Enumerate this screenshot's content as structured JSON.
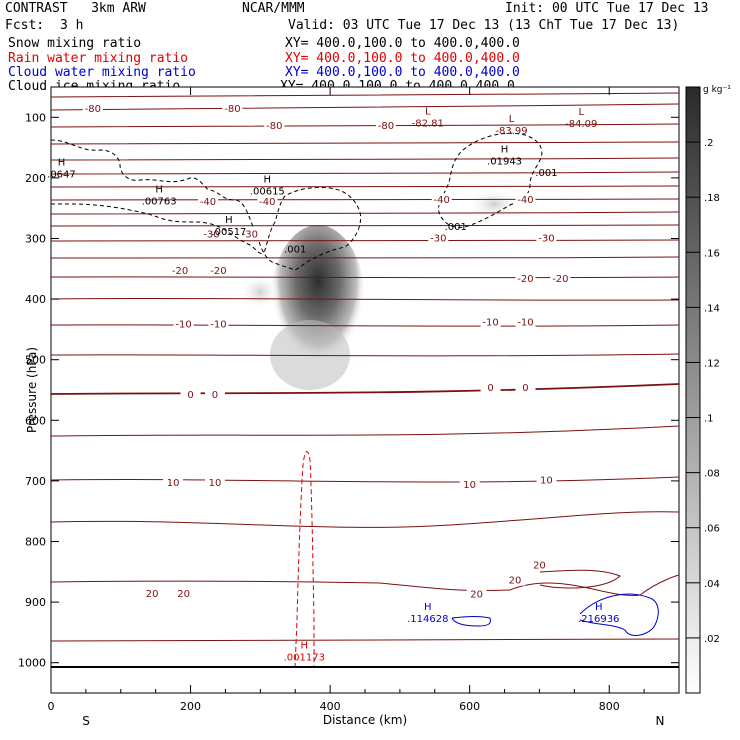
{
  "header": {
    "model": "CONTRAST   3km ARW",
    "org": "NCAR/MMM",
    "init": "Init: 00 UTC Tue 17 Dec 13",
    "fcst_label": "Fcst:",
    "fcst_value": "3 h",
    "valid": "Valid: 03 UTC Tue 17 Dec 13 (13 ChT Tue 17 Dec 13)",
    "fields": [
      {
        "name": "Snow mixing ratio",
        "xy": "XY= 400.0,100.0 to 400.0,400.0",
        "color": "#000000"
      },
      {
        "name": "Rain water mixing ratio",
        "xy": "XY= 400.0,100.0 to 400.0,400.0",
        "color": "#e00000"
      },
      {
        "name": "Cloud water mixing ratio",
        "xy": "XY= 400.0,100.0 to 400.0,400.0",
        "color": "#0000cc"
      },
      {
        "name": "Cloud ice mixing ratio",
        "xy": "XY= 400.0,100.0 to 400.0,400.0",
        "color": "#000000"
      }
    ]
  },
  "chart_data": {
    "type": "contour",
    "xlabel": "Distance (km)",
    "ylabel": "Pressure (hPa)",
    "xlim": [
      0,
      900
    ],
    "ylim": [
      1050,
      50
    ],
    "x_ticks": [
      0,
      200,
      400,
      600,
      800
    ],
    "y_ticks": [
      100,
      200,
      300,
      400,
      500,
      600,
      700,
      800,
      900,
      1000
    ],
    "end_labels": {
      "left": "S",
      "right": "N"
    },
    "colorbar": {
      "unit": "g kg⁻¹",
      "ticks": [
        ".02",
        ".04",
        ".06",
        ".08",
        ".1",
        ".12",
        ".14",
        ".16",
        ".18",
        ".2"
      ],
      "min": 0,
      "max": 0.22
    },
    "temperature_labels": [
      {
        "text": "-80",
        "x": 60,
        "p": 85
      },
      {
        "text": "-80",
        "x": 260,
        "p": 85
      },
      {
        "text": "-80",
        "x": 320,
        "p": 113
      },
      {
        "text": "-80",
        "x": 480,
        "p": 113
      },
      {
        "text": "-40",
        "x": 225,
        "p": 238
      },
      {
        "text": "-40",
        "x": 310,
        "p": 238
      },
      {
        "text": "-40",
        "x": 560,
        "p": 235
      },
      {
        "text": "-40",
        "x": 680,
        "p": 235
      },
      {
        "text": "-30",
        "x": 230,
        "p": 292
      },
      {
        "text": "-30",
        "x": 285,
        "p": 292
      },
      {
        "text": "-30",
        "x": 555,
        "p": 298
      },
      {
        "text": "-30",
        "x": 710,
        "p": 298
      },
      {
        "text": "-20",
        "x": 185,
        "p": 352
      },
      {
        "text": "-20",
        "x": 240,
        "p": 352
      },
      {
        "text": "-20",
        "x": 680,
        "p": 365
      },
      {
        "text": "-20",
        "x": 730,
        "p": 365
      },
      {
        "text": "-10",
        "x": 190,
        "p": 440
      },
      {
        "text": "-10",
        "x": 240,
        "p": 440
      },
      {
        "text": "-10",
        "x": 630,
        "p": 437
      },
      {
        "text": "-10",
        "x": 680,
        "p": 437
      },
      {
        "text": "0",
        "x": 200,
        "p": 557
      },
      {
        "text": "0",
        "x": 235,
        "p": 557
      },
      {
        "text": "0",
        "x": 630,
        "p": 545
      },
      {
        "text": "0",
        "x": 680,
        "p": 545
      },
      {
        "text": "10",
        "x": 175,
        "p": 702
      },
      {
        "text": "10",
        "x": 235,
        "p": 702
      },
      {
        "text": "10",
        "x": 600,
        "p": 705
      },
      {
        "text": "10",
        "x": 710,
        "p": 698
      },
      {
        "text": "20",
        "x": 145,
        "p": 885
      },
      {
        "text": "20",
        "x": 190,
        "p": 885
      },
      {
        "text": "20",
        "x": 610,
        "p": 886
      },
      {
        "text": "20",
        "x": 665,
        "p": 863
      },
      {
        "text": "20",
        "x": 700,
        "p": 838
      }
    ],
    "extrema": [
      {
        "symbol": "L",
        "value": "-82.81",
        "x": 540,
        "p": 102,
        "color": "#7a1010"
      },
      {
        "symbol": "L",
        "value": "-83.99",
        "x": 660,
        "p": 114,
        "color": "#7a1010"
      },
      {
        "symbol": "L",
        "value": "-84.09",
        "x": 760,
        "p": 103,
        "color": "#7a1010"
      },
      {
        "symbol": "H",
        "value": ".0647",
        "x": 15,
        "p": 186,
        "color": "#000000"
      },
      {
        "symbol": "H",
        "value": ".00763",
        "x": 155,
        "p": 231,
        "color": "#000000"
      },
      {
        "symbol": "H",
        "value": ".00615",
        "x": 310,
        "p": 214,
        "color": "#000000"
      },
      {
        "symbol": "H",
        "value": ".00517",
        "x": 255,
        "p": 281,
        "color": "#000000"
      },
      {
        "symbol": "H",
        "value": ".01943",
        "x": 650,
        "p": 165,
        "color": "#000000"
      },
      {
        "symbol": ".",
        "value": ".001",
        "x": 350,
        "p": 310,
        "color": "#000000"
      },
      {
        "symbol": ".",
        "value": ".001",
        "x": 710,
        "p": 184,
        "color": "#000000"
      },
      {
        "symbol": ".",
        "value": ".001",
        "x": 580,
        "p": 273,
        "color": "#000000"
      },
      {
        "symbol": "H",
        "value": ".114628",
        "x": 540,
        "p": 920,
        "color": "#0000cc"
      },
      {
        "symbol": "H",
        "value": ".216936",
        "x": 785,
        "p": 920,
        "color": "#0000cc"
      },
      {
        "symbol": "H",
        "value": ".001173",
        "x": 363,
        "p": 983,
        "color": "#e00000"
      }
    ]
  },
  "colors": {
    "temperature": "#7a1010",
    "rain": "#e00000",
    "cloud_water": "#0000cc",
    "cloud_ice": "#000000"
  }
}
